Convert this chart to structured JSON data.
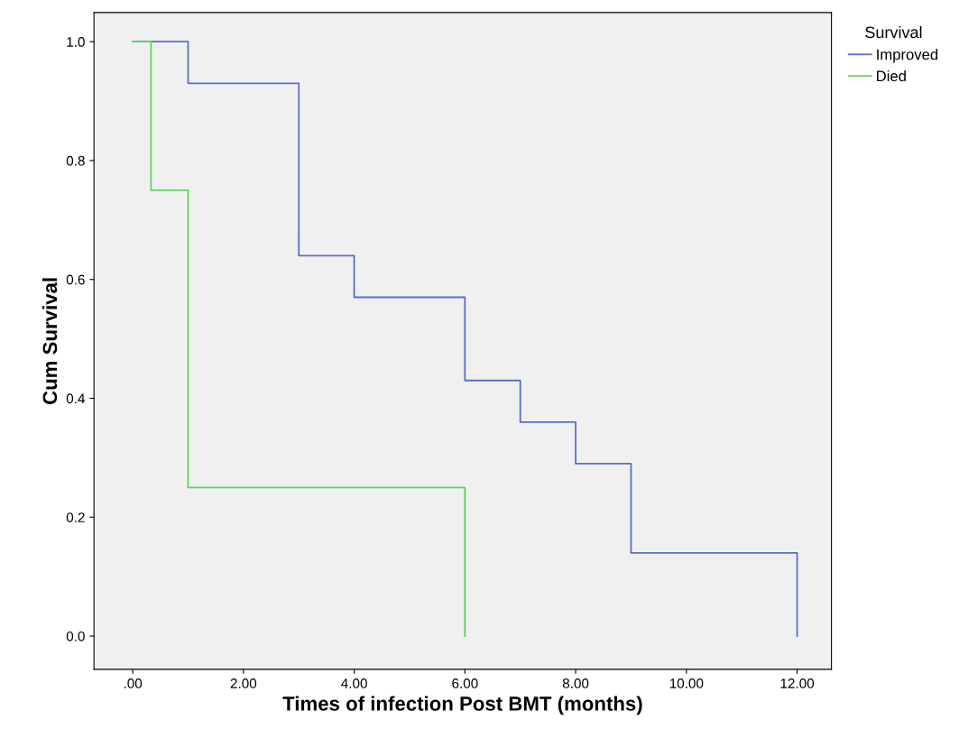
{
  "chart_data": {
    "type": "step",
    "xlabel": "Times of infection Post BMT (months)",
    "ylabel": "Cum Survival",
    "legend_title": "Survival",
    "legend": "top right",
    "grid": false,
    "marker": "none",
    "line_style": "solid",
    "xlim": [
      -0.7,
      12.62
    ],
    "ylim": [
      -0.056,
      1.049
    ],
    "xticks": [
      {
        "value": 0,
        "label": ".00"
      },
      {
        "value": 2,
        "label": "2.00"
      },
      {
        "value": 4,
        "label": "4.00"
      },
      {
        "value": 6,
        "label": "6.00"
      },
      {
        "value": 8,
        "label": "8.00"
      },
      {
        "value": 10,
        "label": "10.00"
      },
      {
        "value": 12,
        "label": "12.00"
      }
    ],
    "yticks": [
      {
        "value": 0,
        "label": "0.0"
      },
      {
        "value": 0.2,
        "label": "0.2"
      },
      {
        "value": 0.4,
        "label": "0.4"
      },
      {
        "value": 0.6,
        "label": "0.6"
      },
      {
        "value": 0.8,
        "label": "0.8"
      },
      {
        "value": 1,
        "label": "1.0"
      }
    ],
    "series": [
      {
        "name": "Improved",
        "color": "#5a6fc4",
        "x": [
          0,
          1,
          3,
          4,
          6,
          7,
          8,
          9,
          12
        ],
        "values": [
          1,
          0.93,
          0.64,
          0.57,
          0.43,
          0.36,
          0.29,
          0.14,
          0
        ]
      },
      {
        "name": "Died",
        "color": "#5fd35f",
        "x": [
          0,
          0.33,
          1,
          6
        ],
        "values": [
          1,
          0.75,
          0.25,
          0
        ]
      }
    ]
  }
}
